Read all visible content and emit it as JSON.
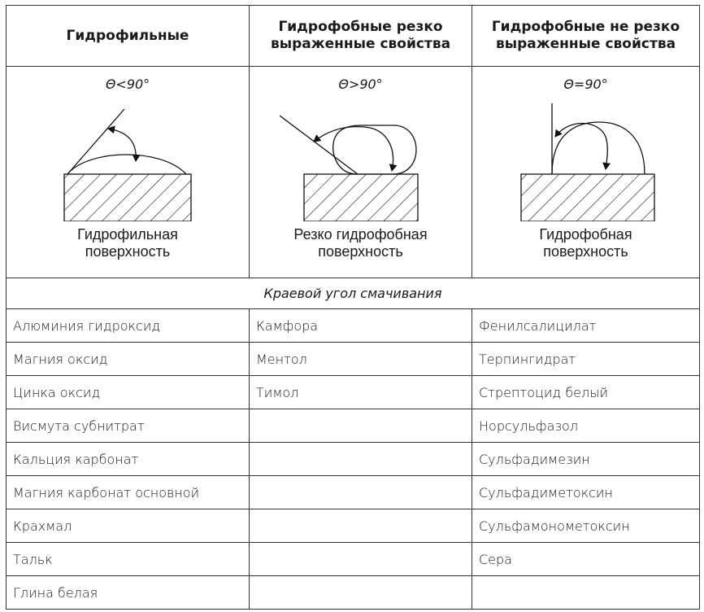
{
  "header": [
    [
      "Гидрофильные"
    ],
    [
      "Гидрофобные резко",
      "выраженные свойства"
    ],
    [
      "Гидрофобные не резко",
      "выраженные свойства"
    ]
  ],
  "diagrams": [
    {
      "angle": "Θ<90°",
      "caption": [
        "Гидрофильная",
        "поверхность"
      ]
    },
    {
      "angle": "Θ>90°",
      "caption": [
        "Резко гидрофобная",
        "поверхность"
      ]
    },
    {
      "angle": "Θ=90°",
      "caption": [
        "Гидрофобная",
        "поверхность"
      ]
    }
  ],
  "caption": "Краевой угол смачивания",
  "rows": [
    [
      "Алюминия гидроксид",
      "Камфора",
      "Фенилсалицилат"
    ],
    [
      "Магния оксид",
      "Ментол",
      "Терпингидрат"
    ],
    [
      "Цинка оксид",
      "Тимол",
      "Стрептоцид белый"
    ],
    [
      "Висмута субнитрат",
      "",
      "Норсульфазол"
    ],
    [
      "Кальция карбонат",
      "",
      "Сульфадимезин"
    ],
    [
      "Магния карбонат основной",
      "",
      "Сульфадиметоксин"
    ],
    [
      "Крахмал",
      "",
      "Сульфамонометоксин"
    ],
    [
      "Тальк",
      "",
      "Сера"
    ],
    [
      "Глина белая",
      "",
      ""
    ]
  ]
}
